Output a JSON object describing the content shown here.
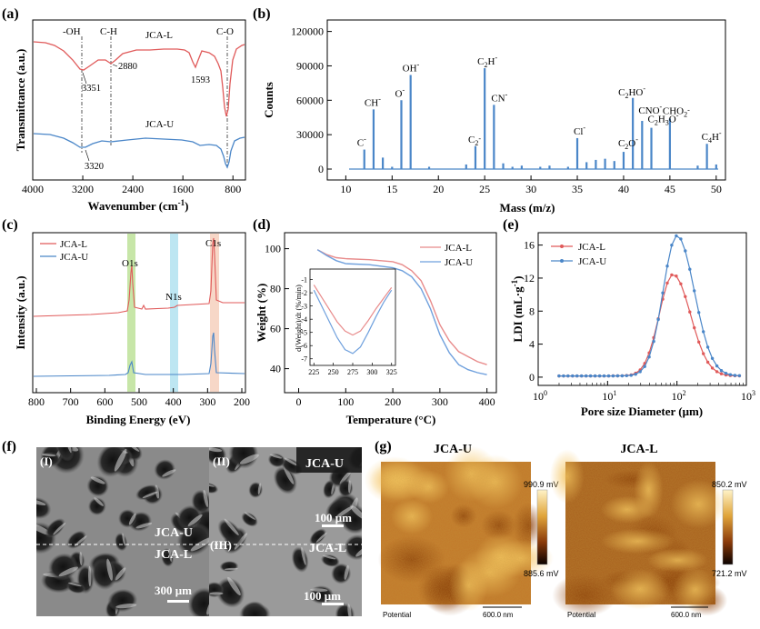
{
  "panels": {
    "a": {
      "label": "(a)",
      "xlabel": "Wavenumber (cm",
      "xlabel_sup": "-1",
      "xlabel_end": ")",
      "ylabel": "Transmittance (a.u.)",
      "xticks": [
        "4000",
        "3200",
        "2400",
        "1600",
        "800"
      ],
      "xlim": [
        4000,
        600
      ],
      "series": [
        {
          "name": "JCA-L",
          "color": "#e05a5a"
        },
        {
          "name": "JCA-U",
          "color": "#4a86c8"
        }
      ],
      "bands": [
        "-OH",
        "C-H",
        "C-O"
      ],
      "peaks": [
        "3351",
        "2880",
        "1593",
        "3320"
      ]
    },
    "b": {
      "label": "(b)",
      "xlabel": "Mass (m/z)",
      "ylabel": "Counts",
      "yticks": [
        "0",
        "30000",
        "60000",
        "90000",
        "120000"
      ],
      "xticks": [
        "10",
        "15",
        "20",
        "25",
        "30",
        "35",
        "40",
        "45",
        "50"
      ],
      "ylim": [
        0,
        130000
      ],
      "xlim": [
        8,
        51
      ],
      "color": "#4a86c8",
      "sticks": [
        {
          "mz": 12,
          "counts": 17000
        },
        {
          "mz": 13,
          "counts": 52000
        },
        {
          "mz": 14,
          "counts": 10000
        },
        {
          "mz": 15,
          "counts": 2000
        },
        {
          "mz": 16,
          "counts": 60000
        },
        {
          "mz": 17,
          "counts": 82000
        },
        {
          "mz": 19,
          "counts": 2000
        },
        {
          "mz": 23,
          "counts": 4000
        },
        {
          "mz": 24,
          "counts": 20000
        },
        {
          "mz": 25,
          "counts": 88000
        },
        {
          "mz": 26,
          "counts": 56000
        },
        {
          "mz": 27,
          "counts": 5000
        },
        {
          "mz": 28,
          "counts": 2000
        },
        {
          "mz": 29,
          "counts": 3000
        },
        {
          "mz": 31,
          "counts": 2000
        },
        {
          "mz": 32,
          "counts": 3000
        },
        {
          "mz": 34,
          "counts": 2000
        },
        {
          "mz": 35,
          "counts": 27000
        },
        {
          "mz": 36,
          "counts": 6000
        },
        {
          "mz": 37,
          "counts": 8000
        },
        {
          "mz": 38,
          "counts": 9000
        },
        {
          "mz": 39,
          "counts": 7000
        },
        {
          "mz": 40,
          "counts": 15000
        },
        {
          "mz": 41,
          "counts": 62000
        },
        {
          "mz": 42,
          "counts": 42000
        },
        {
          "mz": 43,
          "counts": 36000
        },
        {
          "mz": 45,
          "counts": 44000
        },
        {
          "mz": 48,
          "counts": 3000
        },
        {
          "mz": 49,
          "counts": 22000
        },
        {
          "mz": 50,
          "counts": 4000
        }
      ],
      "annotations": [
        {
          "text": "C",
          "sup": "-",
          "sub": "",
          "mz": 12
        },
        {
          "text": "CH",
          "sup": "-",
          "sub": "",
          "mz": 13
        },
        {
          "text": "O",
          "sup": "-",
          "sub": "",
          "mz": 16
        },
        {
          "text": "OH",
          "sup": "-",
          "sub": "",
          "mz": 17
        },
        {
          "text": "C",
          "sup": "-",
          "sub": "2",
          "mz": 24
        },
        {
          "text": "C",
          "sup": "-",
          "sub": "2",
          "tail": "H",
          "mz": 25
        },
        {
          "text": "CN",
          "sup": "-",
          "sub": "",
          "mz": 26
        },
        {
          "text": "Cl",
          "sup": "-",
          "sub": "",
          "mz": 35
        },
        {
          "text": "C",
          "sup": "-",
          "sub": "2",
          "tail": "O",
          "mz": 40
        },
        {
          "text": "C",
          "sup": "-",
          "sub": "2",
          "tail": "HO",
          "mz": 41
        },
        {
          "text": "CNO",
          "sup": "-",
          "sub": "",
          "mz": 42
        },
        {
          "text": "C",
          "sup": "-",
          "sub": "2",
          "tail": "H",
          "sub2": "3",
          "tail2": "O",
          "mz": 43
        },
        {
          "text": "CHO",
          "sup": "-",
          "sub": "2",
          "mz": 45
        },
        {
          "text": "C",
          "sup": "-",
          "sub": "4",
          "tail": "H",
          "mz": 49
        }
      ]
    },
    "c": {
      "label": "(c)",
      "xlabel": "Binding Energy (eV)",
      "ylabel": "Intensity (a.u.)",
      "xticks": [
        "800",
        "700",
        "600",
        "500",
        "400",
        "300",
        "200"
      ],
      "xlim": [
        800,
        200
      ],
      "legend": [
        "JCA-L",
        "JCA-U"
      ],
      "peaks": [
        "O1s",
        "N1s",
        "C1s"
      ],
      "colors": {
        "L": "#e05a5a",
        "U": "#4a86c8",
        "o1s": "#c7e6a8",
        "n1s": "#bde6f2",
        "c1s": "#f7d7c7"
      }
    },
    "d": {
      "label": "(d)",
      "xlabel": "Temperature (°C)",
      "ylabel": "Weight (%)",
      "yticks": [
        "40",
        "60",
        "80",
        "100"
      ],
      "xticks": [
        "0",
        "100",
        "200",
        "300",
        "400"
      ],
      "xlim": [
        -30,
        420
      ],
      "ylim": [
        28,
        108
      ],
      "legend": [
        "JCA-L",
        "JCA-U"
      ],
      "series": [
        {
          "name": "JCA-L",
          "color": "#e88b8b",
          "x": [
            40,
            60,
            80,
            100,
            150,
            200,
            220,
            240,
            260,
            280,
            300,
            320,
            340,
            360,
            380,
            400
          ],
          "y": [
            99.5,
            97,
            95.5,
            95,
            94.5,
            93.5,
            92,
            89,
            84,
            74,
            62,
            54,
            48.5,
            46,
            43.5,
            42
          ]
        },
        {
          "name": "JCA-U",
          "color": "#6fa0dd",
          "x": [
            40,
            60,
            80,
            100,
            150,
            200,
            220,
            240,
            260,
            280,
            300,
            320,
            340,
            360,
            380,
            400
          ],
          "y": [
            99.5,
            96.5,
            94,
            92.5,
            92,
            90.5,
            89,
            86,
            80,
            70,
            57,
            48,
            42,
            39.5,
            38,
            37
          ]
        }
      ],
      "inset": {
        "ylabel": "d(Weight)/dt (%/min)",
        "yticks": [
          "-1",
          "-2",
          "-3",
          "-4",
          "-5",
          "-6",
          "-7"
        ],
        "xticks": [
          "225",
          "250",
          "275",
          "300",
          "325"
        ],
        "xlim": [
          220,
          330
        ],
        "ylim": [
          -7.5,
          -0.2
        ],
        "series": [
          {
            "name": "JCA-L",
            "color": "#e88b8b",
            "x": [
              225,
              240,
              255,
              265,
              275,
              285,
              295,
              305,
              315,
              325
            ],
            "y": [
              -1.4,
              -2.8,
              -4.2,
              -4.9,
              -5.2,
              -4.9,
              -4.1,
              -3.2,
              -2.4,
              -1.6
            ]
          },
          {
            "name": "JCA-U",
            "color": "#6fa0dd",
            "x": [
              225,
              240,
              255,
              265,
              275,
              285,
              295,
              305,
              315,
              325
            ],
            "y": [
              -1.8,
              -3.6,
              -5.4,
              -6.3,
              -6.6,
              -6.1,
              -5.0,
              -3.8,
              -2.7,
              -1.8
            ]
          }
        ]
      }
    },
    "e": {
      "label": "(e)",
      "xlabel": "Pore size Diameter (μm)",
      "ylabel": "LDI (mL·g",
      "ylabel_sup": "-1",
      "ylabel_end": ")",
      "yticks": [
        "0",
        "4",
        "8",
        "12",
        "16"
      ],
      "xticks": [
        {
          "base": "10",
          "exp": "0"
        },
        {
          "base": "10",
          "exp": "1"
        },
        {
          "base": "10",
          "exp": "2"
        },
        {
          "base": "10",
          "exp": "3"
        }
      ],
      "ylim": [
        -1,
        17.5
      ],
      "legend": [
        "JCA-L",
        "JCA-U"
      ],
      "series": [
        {
          "name": "JCA-L",
          "color": "#e05a5a",
          "center_um": 88,
          "peak": 12.3,
          "sigma_log10": 0.2
        },
        {
          "name": "JCA-U",
          "color": "#4a86c8",
          "center_um": 100,
          "peak": 17.0,
          "sigma_log10": 0.2
        }
      ]
    },
    "f": {
      "label": "(f)",
      "subs": [
        "(I)",
        "(II)",
        "(III)"
      ],
      "tags": {
        "ii": "JCA-U",
        "iii": "JCA-L",
        "left_top": "JCA-U",
        "left_bottom": "JCA-L"
      },
      "scales": [
        "300 μm",
        "100 μm",
        "100 μm"
      ]
    },
    "g": {
      "label": "(g)",
      "maps": [
        {
          "title": "JCA-U",
          "max": "990.9 mV",
          "min": "885.6 mV",
          "footer": "Potential",
          "scale": "600.0 nm"
        },
        {
          "title": "JCA-L",
          "max": "850.2 mV",
          "min": "721.2 mV",
          "footer": "Potential",
          "scale": "600.0 nm"
        }
      ]
    }
  }
}
